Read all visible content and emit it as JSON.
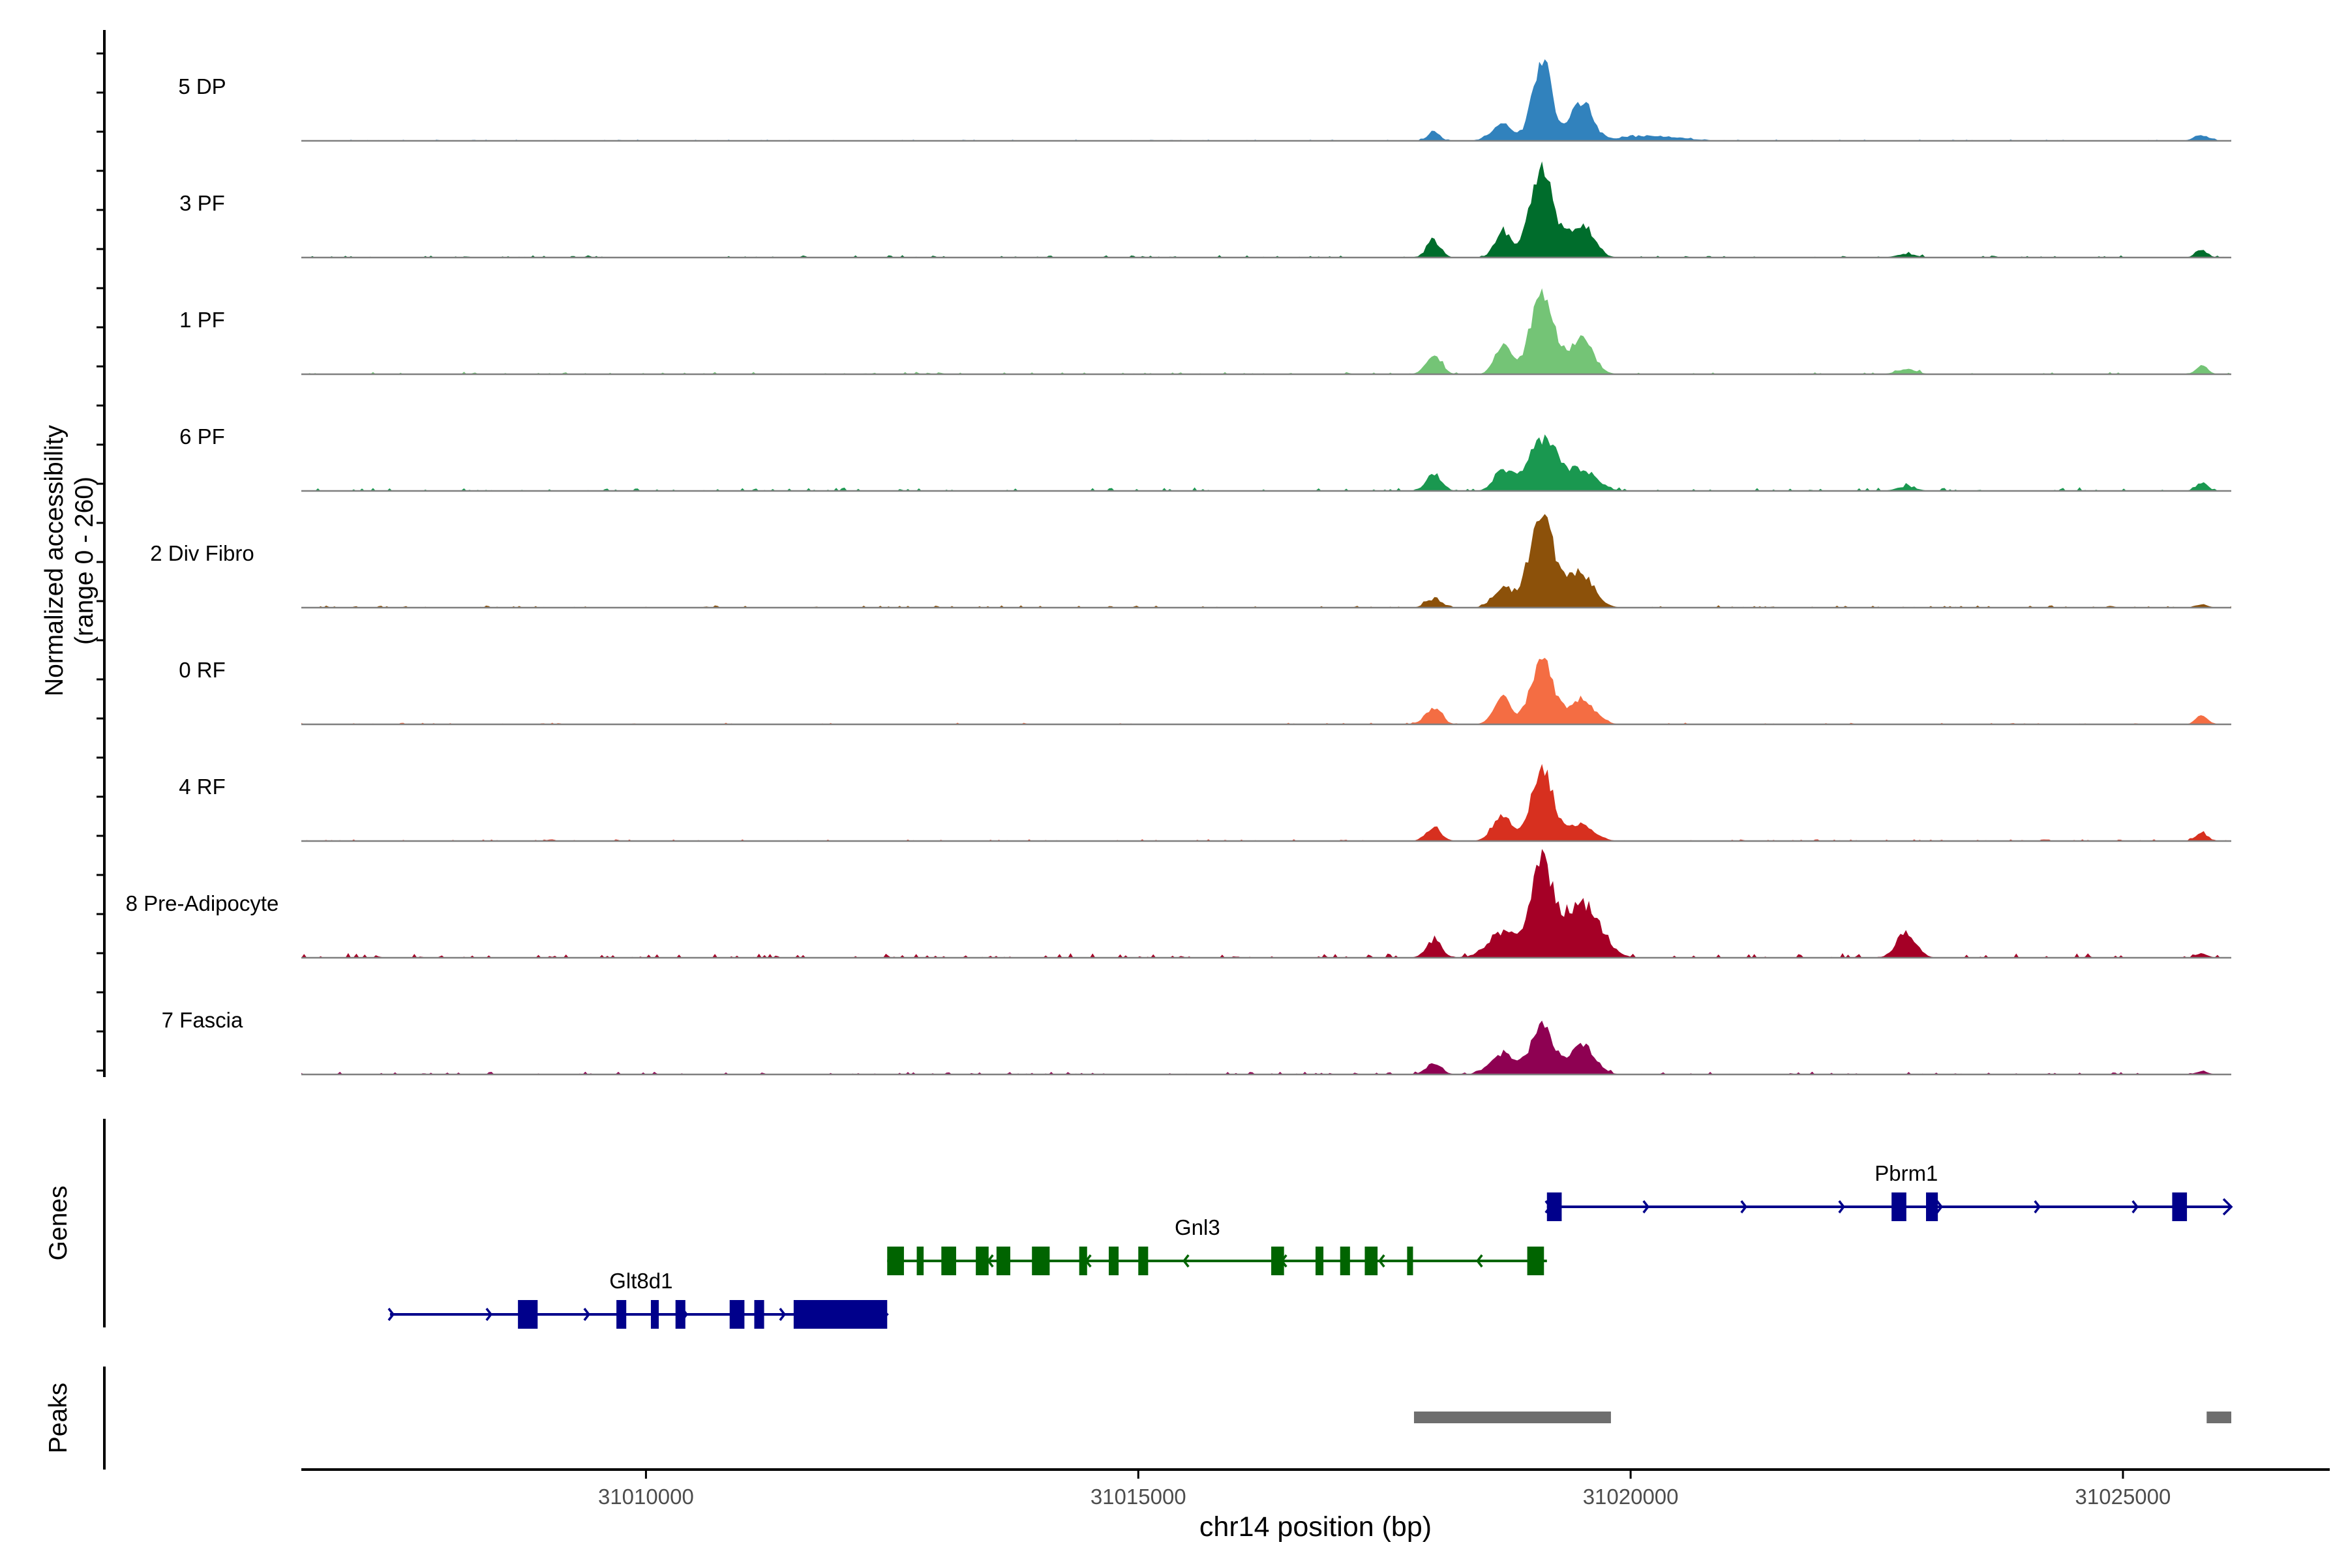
{
  "chart_data": {
    "type": "coverage",
    "x_axis": {
      "label": "chr14 position (bp)",
      "range": [
        31006500,
        31027100
      ],
      "ticks": [
        31010000,
        31015000,
        31020000,
        31025000
      ],
      "tick_labels": [
        "31010000",
        "31015000",
        "31020000",
        "31025000"
      ]
    },
    "coverage": {
      "ylabel": "Normalized accessibility\n(range 0 - 260)",
      "ylim": [
        0,
        260
      ],
      "tracks": [
        {
          "name": "5 DP",
          "color": "#3182BD",
          "peaks": [
            [
              31018000,
              22,
              60
            ],
            [
              31018700,
              38,
              110
            ],
            [
              31019100,
              190,
              95
            ],
            [
              31019500,
              90,
              110
            ],
            [
              31020200,
              12,
              300
            ],
            [
              31025800,
              12,
              80
            ]
          ],
          "baseline": 3
        },
        {
          "name": "3 PF",
          "color": "#006D2C",
          "peaks": [
            [
              31018000,
              40,
              70
            ],
            [
              31018700,
              60,
              80
            ],
            [
              31019100,
              200,
              120
            ],
            [
              31019500,
              80,
              120
            ],
            [
              31022800,
              8,
              100
            ],
            [
              31025800,
              18,
              60
            ]
          ],
          "baseline": 5
        },
        {
          "name": "1 PF",
          "color": "#74C476",
          "peaks": [
            [
              31018000,
              45,
              80
            ],
            [
              31018700,
              70,
              80
            ],
            [
              31019100,
              190,
              120
            ],
            [
              31019500,
              80,
              120
            ],
            [
              31022800,
              12,
              100
            ],
            [
              31025800,
              20,
              60
            ]
          ],
          "baseline": 5
        },
        {
          "name": "6 PF",
          "color": "#1A9850",
          "peaks": [
            [
              31018000,
              35,
              80
            ],
            [
              31018700,
              50,
              90
            ],
            [
              31019100,
              120,
              140
            ],
            [
              31019500,
              50,
              150
            ],
            [
              31022800,
              10,
              100
            ],
            [
              31025800,
              20,
              60
            ]
          ],
          "baseline": 8
        },
        {
          "name": "2 Div Fibro",
          "color": "#8C510A",
          "peaks": [
            [
              31018000,
              20,
              80
            ],
            [
              31018700,
              45,
              100
            ],
            [
              31019100,
              210,
              130
            ],
            [
              31019500,
              80,
              130
            ],
            [
              31025800,
              8,
              60
            ]
          ],
          "baseline": 5
        },
        {
          "name": "0 RF",
          "color": "#F46D43",
          "peaks": [
            [
              31018000,
              40,
              80
            ],
            [
              31018700,
              65,
              90
            ],
            [
              31019100,
              160,
              110
            ],
            [
              31019500,
              60,
              130
            ],
            [
              31025800,
              20,
              60
            ]
          ],
          "baseline": 4
        },
        {
          "name": "4 RF",
          "color": "#D7301F",
          "peaks": [
            [
              31018000,
              30,
              80
            ],
            [
              31018700,
              60,
              100
            ],
            [
              31019100,
              170,
              110
            ],
            [
              31019500,
              40,
              130
            ],
            [
              31025800,
              20,
              60
            ]
          ],
          "baseline": 4
        },
        {
          "name": "8 Pre-Adipocyte",
          "color": "#A50026",
          "peaks": [
            [
              31018000,
              40,
              80
            ],
            [
              31018700,
              60,
              150
            ],
            [
              31019100,
              220,
              110
            ],
            [
              31019500,
              130,
              180
            ],
            [
              31022800,
              60,
              100
            ],
            [
              31025800,
              10,
              60
            ]
          ],
          "baseline": 10
        },
        {
          "name": "7 Fascia",
          "color": "#8E0152",
          "peaks": [
            [
              31018000,
              25,
              80
            ],
            [
              31018700,
              50,
              120
            ],
            [
              31019100,
              120,
              110
            ],
            [
              31019500,
              70,
              130
            ],
            [
              31025800,
              8,
              60
            ]
          ],
          "baseline": 6
        }
      ]
    },
    "genes": {
      "ylabel": "Genes",
      "color_fwd": "#00008B",
      "color_rev": "#006400",
      "items": [
        {
          "name": "Pbrm1",
          "strand": "+",
          "start": 31019150,
          "end": 31026100,
          "row": 0,
          "label_pos": 31022800,
          "exons": [
            [
              31019150,
              31019300
            ],
            [
              31022650,
              31022800
            ],
            [
              31023000,
              31023120
            ],
            [
              31025500,
              31025650
            ]
          ]
        },
        {
          "name": "Gnl3",
          "strand": "-",
          "start": 31012450,
          "end": 31019150,
          "row": 1,
          "label_pos": 31015600,
          "exons": [
            [
              31012450,
              31012620
            ],
            [
              31012750,
              31012820
            ],
            [
              31013000,
              31013150
            ],
            [
              31013350,
              31013480
            ],
            [
              31013560,
              31013700
            ],
            [
              31013920,
              31014100
            ],
            [
              31014400,
              31014480
            ],
            [
              31014700,
              31014800
            ],
            [
              31015000,
              31015100
            ],
            [
              31016350,
              31016480
            ],
            [
              31016800,
              31016880
            ],
            [
              31017050,
              31017150
            ],
            [
              31017300,
              31017430
            ],
            [
              31017730,
              31017790
            ],
            [
              31018950,
              31019120
            ]
          ]
        },
        {
          "name": "Glt8d1",
          "strand": "+",
          "start": 31007400,
          "end": 31012450,
          "row": 2,
          "label_pos": 31009950,
          "exons": [
            [
              31008700,
              31008900
            ],
            [
              31009700,
              31009800
            ],
            [
              31010050,
              31010130
            ],
            [
              31010300,
              31010400
            ],
            [
              31010850,
              31011000
            ],
            [
              31011100,
              31011200
            ],
            [
              31011500,
              31012450
            ]
          ]
        }
      ]
    },
    "peaks": {
      "ylabel": "Peaks",
      "color": "#6E6E6E",
      "regions": [
        [
          31017800,
          31019800
        ],
        [
          31025850,
          31026100
        ]
      ]
    }
  }
}
